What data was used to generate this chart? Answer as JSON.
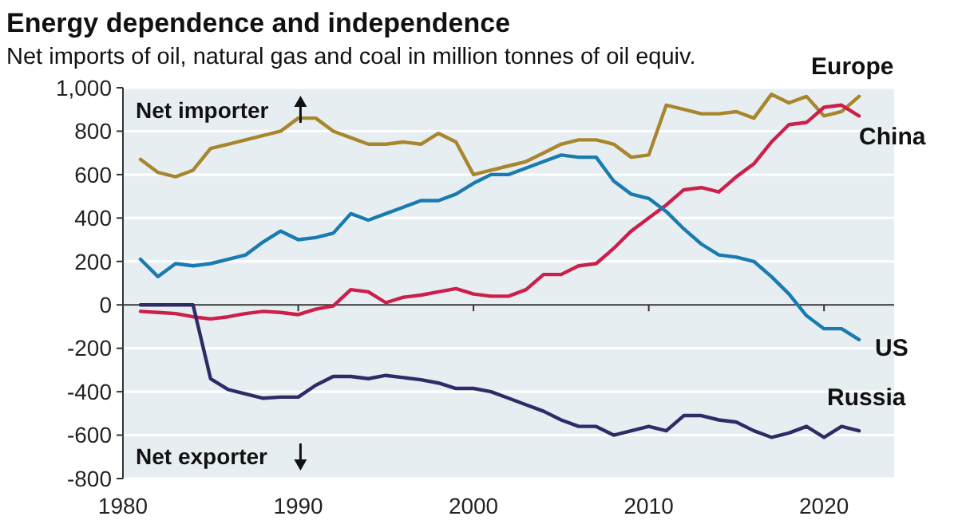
{
  "chart_data": {
    "type": "line",
    "title": "Energy dependence and independence",
    "subtitle": "Net imports of oil, natural gas and coal in million tonnes of oil equiv.",
    "x": [
      1981,
      1982,
      1983,
      1984,
      1985,
      1986,
      1987,
      1988,
      1989,
      1990,
      1991,
      1992,
      1993,
      1994,
      1995,
      1996,
      1997,
      1998,
      1999,
      2000,
      2001,
      2002,
      2003,
      2004,
      2005,
      2006,
      2007,
      2008,
      2009,
      2010,
      2011,
      2012,
      2013,
      2014,
      2015,
      2016,
      2017,
      2018,
      2019,
      2020,
      2021,
      2022
    ],
    "series": [
      {
        "name": "Europe",
        "color": "#a8862e",
        "values": [
          670,
          610,
          590,
          620,
          720,
          740,
          760,
          780,
          800,
          860,
          860,
          800,
          770,
          740,
          740,
          750,
          740,
          790,
          750,
          600,
          620,
          640,
          660,
          700,
          740,
          760,
          760,
          740,
          680,
          690,
          920,
          900,
          880,
          880,
          890,
          860,
          970,
          930,
          960,
          870,
          890,
          960
        ]
      },
      {
        "name": "China",
        "color": "#cc1f4a",
        "values": [
          -30,
          -35,
          -40,
          -55,
          -65,
          -55,
          -40,
          -30,
          -35,
          -45,
          -20,
          -5,
          70,
          60,
          10,
          35,
          45,
          60,
          75,
          50,
          40,
          40,
          70,
          140,
          140,
          180,
          190,
          260,
          340,
          400,
          460,
          530,
          540,
          520,
          590,
          650,
          750,
          830,
          840,
          910,
          920,
          870
        ]
      },
      {
        "name": "US",
        "color": "#1a7bb0",
        "values": [
          210,
          130,
          190,
          180,
          190,
          210,
          230,
          290,
          340,
          300,
          310,
          330,
          420,
          390,
          420,
          450,
          480,
          480,
          510,
          560,
          600,
          600,
          630,
          660,
          690,
          680,
          680,
          570,
          510,
          490,
          430,
          350,
          280,
          230,
          220,
          200,
          130,
          50,
          -50,
          -110,
          -110,
          -160
        ]
      },
      {
        "name": "Russia",
        "color": "#2e2b66",
        "values": [
          0,
          0,
          0,
          0,
          -340,
          -390,
          -410,
          -430,
          -425,
          -425,
          -370,
          -330,
          -330,
          -340,
          -325,
          -335,
          -345,
          -360,
          -385,
          -385,
          -400,
          -430,
          -460,
          -490,
          -530,
          -560,
          -560,
          -600,
          -580,
          -560,
          -580,
          -510,
          -510,
          -530,
          -540,
          -580,
          -610,
          -590,
          -560,
          -610,
          -560,
          -580
        ]
      }
    ],
    "xlim": [
      1980,
      2024
    ],
    "xticks": [
      1980,
      1990,
      2000,
      2010,
      2020
    ],
    "ylim": [
      -800,
      1000
    ],
    "yticks": [
      {
        "value": -800,
        "label": "-800"
      },
      {
        "value": -600,
        "label": "-600"
      },
      {
        "value": -400,
        "label": "-400"
      },
      {
        "value": -200,
        "label": "-200"
      },
      0,
      200,
      400,
      600,
      800,
      {
        "value": 1000,
        "label": "1,000"
      }
    ],
    "grid": "y",
    "legend": false,
    "marker": "none",
    "line_style": "solid",
    "annotations": [
      "Net importer",
      "Net exporter"
    ]
  }
}
